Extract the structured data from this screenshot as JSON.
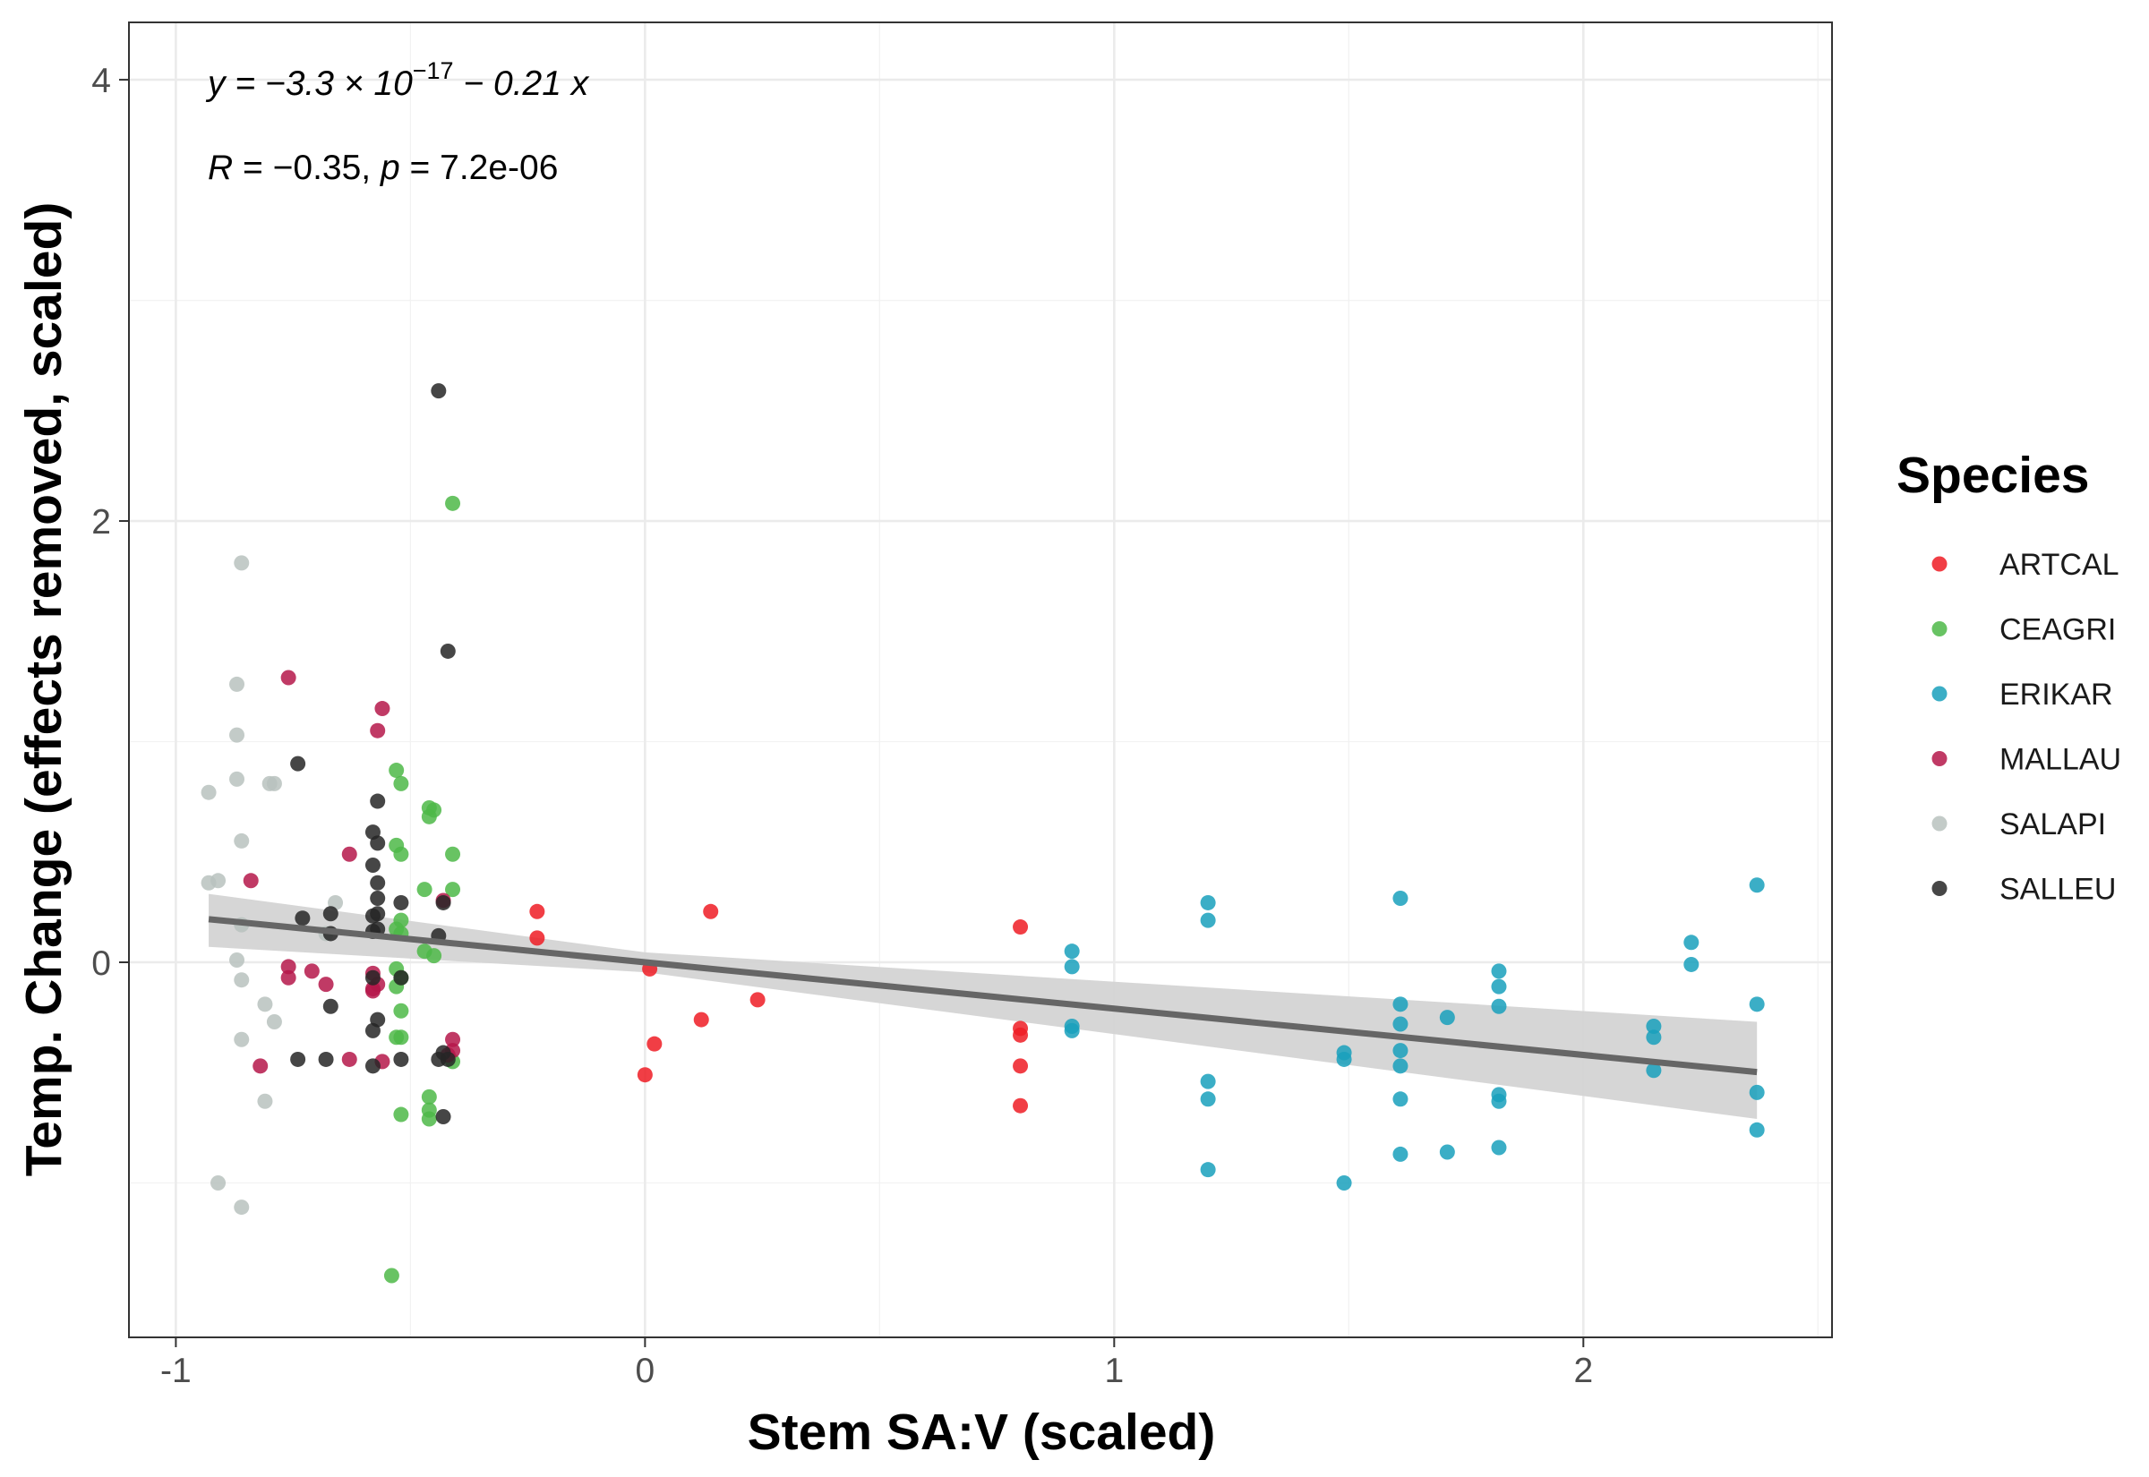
{
  "chart_data": {
    "type": "scatter",
    "title": "",
    "xlabel": "Stem SA:V (scaled)",
    "ylabel": "Temp. Change (effects removed, scaled)",
    "xlim": [
      -1.1,
      2.53
    ],
    "ylim": [
      -1.7,
      4.26
    ],
    "xticks": [
      -1,
      0,
      1,
      2
    ],
    "xtick_labels": [
      "-1",
      "0",
      "1",
      "2"
    ],
    "yticks": [
      0,
      2,
      4
    ],
    "ytick_labels": [
      "0",
      "2",
      "4"
    ],
    "grid": true,
    "legend": {
      "title": "Species",
      "position": "right"
    },
    "annotations": {
      "equation": {
        "prefix": "y = −3.3 × 10",
        "exponent": "−17",
        "suffix": " − 0.21 x"
      },
      "stats": {
        "r_label": "R",
        "r_text": " = −0.35, ",
        "p_label": "p",
        "p_text": " = 7.2e-06"
      }
    },
    "regression": {
      "slope": -0.21,
      "intercept": 0,
      "x_range": [
        -0.93,
        2.37
      ],
      "ci": [
        {
          "x": -0.93,
          "lo": 0.07,
          "hi": 0.31
        },
        {
          "x": 0.0,
          "lo": -0.045,
          "hi": 0.045
        },
        {
          "x": 2.37,
          "lo": -0.71,
          "hi": -0.27
        }
      ],
      "color": "#666666",
      "ci_color": "#d4d4d4"
    },
    "series": [
      {
        "name": "ARTCAL",
        "color": "#ee1c24",
        "x": [
          -0.23,
          -0.23,
          0.0,
          0.02,
          0.01,
          0.12,
          0.14,
          0.24,
          0.8,
          0.8,
          0.8,
          0.8,
          0.8
        ],
        "y": [
          0.23,
          0.11,
          -0.51,
          -0.37,
          -0.03,
          -0.26,
          0.23,
          -0.17,
          0.16,
          -0.3,
          -0.33,
          -0.47,
          -0.65
        ]
      },
      {
        "name": "CEAGRI",
        "color": "#4db848",
        "x": [
          -0.41,
          -0.41,
          -0.41,
          -0.53,
          -0.52,
          -0.53,
          -0.52,
          -0.46,
          -0.45,
          -0.46,
          -0.47,
          -0.47,
          -0.52,
          -0.53,
          -0.52,
          -0.53,
          -0.52,
          -0.53,
          -0.52,
          -0.52,
          -0.53,
          -0.46,
          -0.46,
          -0.52,
          -0.54,
          -0.45,
          -0.46,
          -0.41
        ],
        "y": [
          2.08,
          0.49,
          0.33,
          0.87,
          0.81,
          0.53,
          0.49,
          0.66,
          0.69,
          0.7,
          0.33,
          0.05,
          0.19,
          0.15,
          0.13,
          -0.03,
          -0.07,
          -0.11,
          -0.22,
          -0.34,
          -0.34,
          -0.61,
          -0.67,
          -0.69,
          -1.42,
          0.03,
          -0.71,
          -0.45
        ]
      },
      {
        "name": "ERIKAR",
        "color": "#19a0bc",
        "x": [
          0.91,
          0.91,
          0.91,
          0.91,
          1.2,
          1.2,
          1.2,
          1.2,
          1.2,
          1.49,
          1.49,
          1.49,
          1.61,
          1.61,
          1.61,
          1.61,
          1.61,
          1.61,
          1.61,
          1.71,
          1.71,
          1.82,
          1.82,
          1.82,
          1.82,
          1.82,
          1.82,
          2.15,
          2.15,
          2.15,
          2.23,
          2.23,
          2.37,
          2.37,
          2.37,
          2.37
        ],
        "y": [
          0.05,
          -0.02,
          -0.29,
          -0.31,
          0.27,
          0.19,
          -0.54,
          -0.62,
          -0.94,
          -0.41,
          -0.44,
          -1.0,
          0.29,
          -0.19,
          -0.28,
          -0.4,
          -0.47,
          -0.62,
          -0.87,
          -0.25,
          -0.86,
          -0.04,
          -0.11,
          -0.2,
          -0.6,
          -0.63,
          -0.84,
          -0.29,
          -0.34,
          -0.49,
          0.09,
          -0.01,
          0.35,
          -0.19,
          -0.59,
          -0.76
        ]
      },
      {
        "name": "MALLAU",
        "color": "#b5184a",
        "x": [
          -0.76,
          -0.56,
          -0.57,
          -0.63,
          -0.84,
          -0.76,
          -0.76,
          -0.71,
          -0.68,
          -0.82,
          -0.63,
          -0.58,
          -0.57,
          -0.58,
          -0.58,
          -0.56,
          -0.43,
          -0.41,
          -0.41,
          -0.42
        ],
        "y": [
          1.29,
          1.15,
          1.05,
          0.49,
          0.37,
          -0.02,
          -0.07,
          -0.04,
          -0.1,
          -0.47,
          -0.44,
          -0.05,
          -0.1,
          -0.12,
          -0.13,
          -0.45,
          0.28,
          -0.35,
          -0.4,
          -0.42
        ]
      },
      {
        "name": "SALAPI",
        "color": "#b8c2be",
        "x": [
          -0.86,
          -0.87,
          -0.87,
          -0.87,
          -0.93,
          -0.86,
          -0.93,
          -0.91,
          -0.86,
          -0.87,
          -0.86,
          -0.8,
          -0.81,
          -0.79,
          -0.86,
          -0.81,
          -0.91,
          -0.86,
          -0.79,
          -0.66,
          -0.68
        ],
        "y": [
          1.81,
          1.26,
          1.03,
          0.83,
          0.77,
          0.55,
          0.36,
          0.37,
          0.17,
          0.01,
          -0.08,
          0.81,
          -0.19,
          -0.27,
          -0.35,
          -0.63,
          -1.0,
          -1.11,
          0.81,
          0.27,
          0.13
        ]
      },
      {
        "name": "SALLEU",
        "color": "#262626",
        "x": [
          -0.44,
          -0.42,
          -0.74,
          -0.57,
          -0.58,
          -0.57,
          -0.58,
          -0.57,
          -0.52,
          -0.43,
          -0.57,
          -0.58,
          -0.57,
          -0.73,
          -0.67,
          -0.58,
          -0.67,
          -0.57,
          -0.52,
          -0.58,
          -0.57,
          -0.58,
          -0.52,
          -0.67,
          -0.74,
          -0.68,
          -0.44,
          -0.43,
          -0.58,
          -0.44,
          -0.42,
          -0.43
        ],
        "y": [
          2.59,
          1.41,
          0.9,
          0.73,
          0.59,
          0.54,
          0.44,
          0.36,
          0.27,
          0.27,
          0.29,
          0.21,
          0.15,
          0.2,
          0.22,
          0.14,
          0.13,
          0.22,
          -0.07,
          -0.07,
          -0.26,
          -0.31,
          -0.44,
          -0.2,
          -0.44,
          -0.44,
          0.12,
          -0.41,
          -0.47,
          -0.44,
          -0.44,
          -0.7
        ]
      }
    ]
  }
}
